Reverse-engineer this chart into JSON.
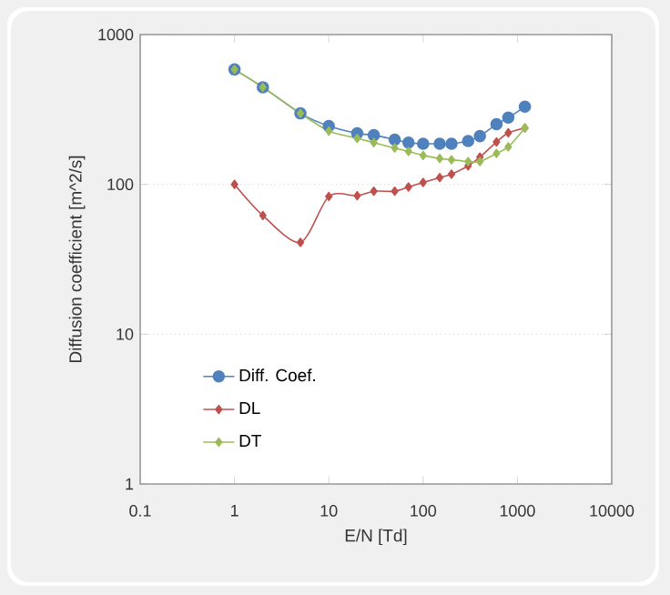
{
  "chart_data": {
    "type": "line",
    "xlabel": "E/N [Td]",
    "ylabel": "Diffusion coefficient [m^2/s]",
    "log": "xy",
    "grid": "y",
    "legend": "bottom left",
    "line_style": "solid",
    "xlim": [
      0.1,
      10000
    ],
    "xticks": [
      0.1,
      1,
      10,
      100,
      1000,
      10000
    ],
    "ylim": [
      1,
      1000
    ],
    "yticks": [
      1,
      10,
      100,
      1000
    ],
    "x": [
      1,
      2,
      5,
      10,
      20,
      30,
      50,
      70,
      100,
      150,
      200,
      300,
      400,
      600,
      800,
      1200
    ],
    "series": [
      {
        "name": "Diff. Coef.",
        "color": "#4f81bd",
        "marker": "circle",
        "values": [
          585,
          445,
          298,
          245,
          219,
          213,
          199,
          190,
          187,
          187,
          187,
          195,
          210,
          252,
          279,
          330
        ]
      },
      {
        "name": "DL",
        "color": "#c0504d",
        "marker": "diamond",
        "values": [
          100,
          62,
          41,
          83,
          84,
          90,
          90,
          96,
          103,
          111,
          117,
          133,
          152,
          192,
          221,
          238
        ]
      },
      {
        "name": "DT",
        "color": "#9bbb59",
        "marker": "diamond",
        "values": [
          585,
          445,
          298,
          227,
          203,
          190,
          175,
          166,
          156,
          149,
          146,
          142,
          142,
          161,
          178,
          238
        ]
      }
    ]
  }
}
